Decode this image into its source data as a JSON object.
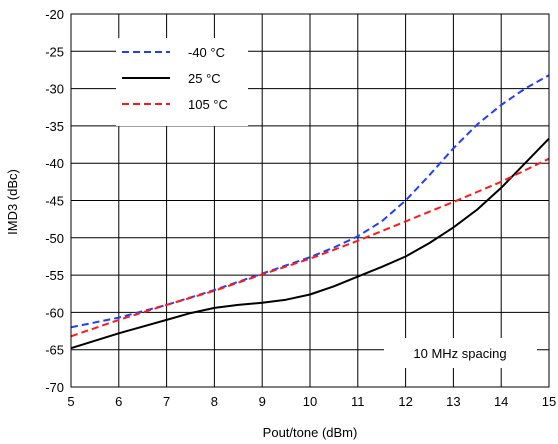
{
  "chart_data": {
    "type": "line",
    "xlabel": "Pout/tone (dBm)",
    "ylabel": "IMD3 (dBc)",
    "xlim": [
      5,
      15
    ],
    "ylim": [
      -70,
      -20
    ],
    "xticks": [
      5,
      6,
      7,
      8,
      9,
      10,
      11,
      12,
      13,
      14,
      15
    ],
    "yticks": [
      -20,
      -25,
      -30,
      -35,
      -40,
      -45,
      -50,
      -55,
      -60,
      -65,
      -70
    ],
    "grid": true,
    "legend_position": "top-left",
    "annotation": "10 MHz spacing",
    "series": [
      {
        "name": "-40 °C",
        "color": "#1f3fff",
        "dash": "dashed",
        "x": [
          5,
          6,
          7,
          8,
          9,
          10,
          10.5,
          11,
          11.5,
          12,
          12.5,
          13,
          13.5,
          14,
          14.5,
          15
        ],
        "y": [
          -62,
          -60.7,
          -59,
          -57,
          -54.8,
          -52.6,
          -51.3,
          -49.8,
          -47.8,
          -45,
          -41.6,
          -38,
          -34.8,
          -32.2,
          -30,
          -28.2
        ]
      },
      {
        "name": "25 °C",
        "color": "#000000",
        "dash": "solid",
        "x": [
          5,
          6,
          7,
          7.5,
          8,
          8.5,
          9,
          9.5,
          10,
          10.5,
          11,
          11.5,
          12,
          12.5,
          13,
          13.5,
          14,
          14.5,
          15
        ],
        "y": [
          -64.8,
          -62.8,
          -61,
          -60.1,
          -59.4,
          -59,
          -58.7,
          -58.3,
          -57.6,
          -56.5,
          -55.2,
          -53.9,
          -52.5,
          -50.7,
          -48.6,
          -46.2,
          -43.3,
          -40,
          -36.7
        ]
      },
      {
        "name": "105 °C",
        "color": "#ff1a1a",
        "dash": "dashed",
        "x": [
          5,
          6,
          7,
          8,
          9,
          10,
          11,
          12,
          13,
          14,
          15
        ],
        "y": [
          -63.2,
          -61,
          -59,
          -57.1,
          -54.9,
          -52.8,
          -50.4,
          -47.8,
          -45.2,
          -42.5,
          -39.4
        ]
      }
    ]
  }
}
